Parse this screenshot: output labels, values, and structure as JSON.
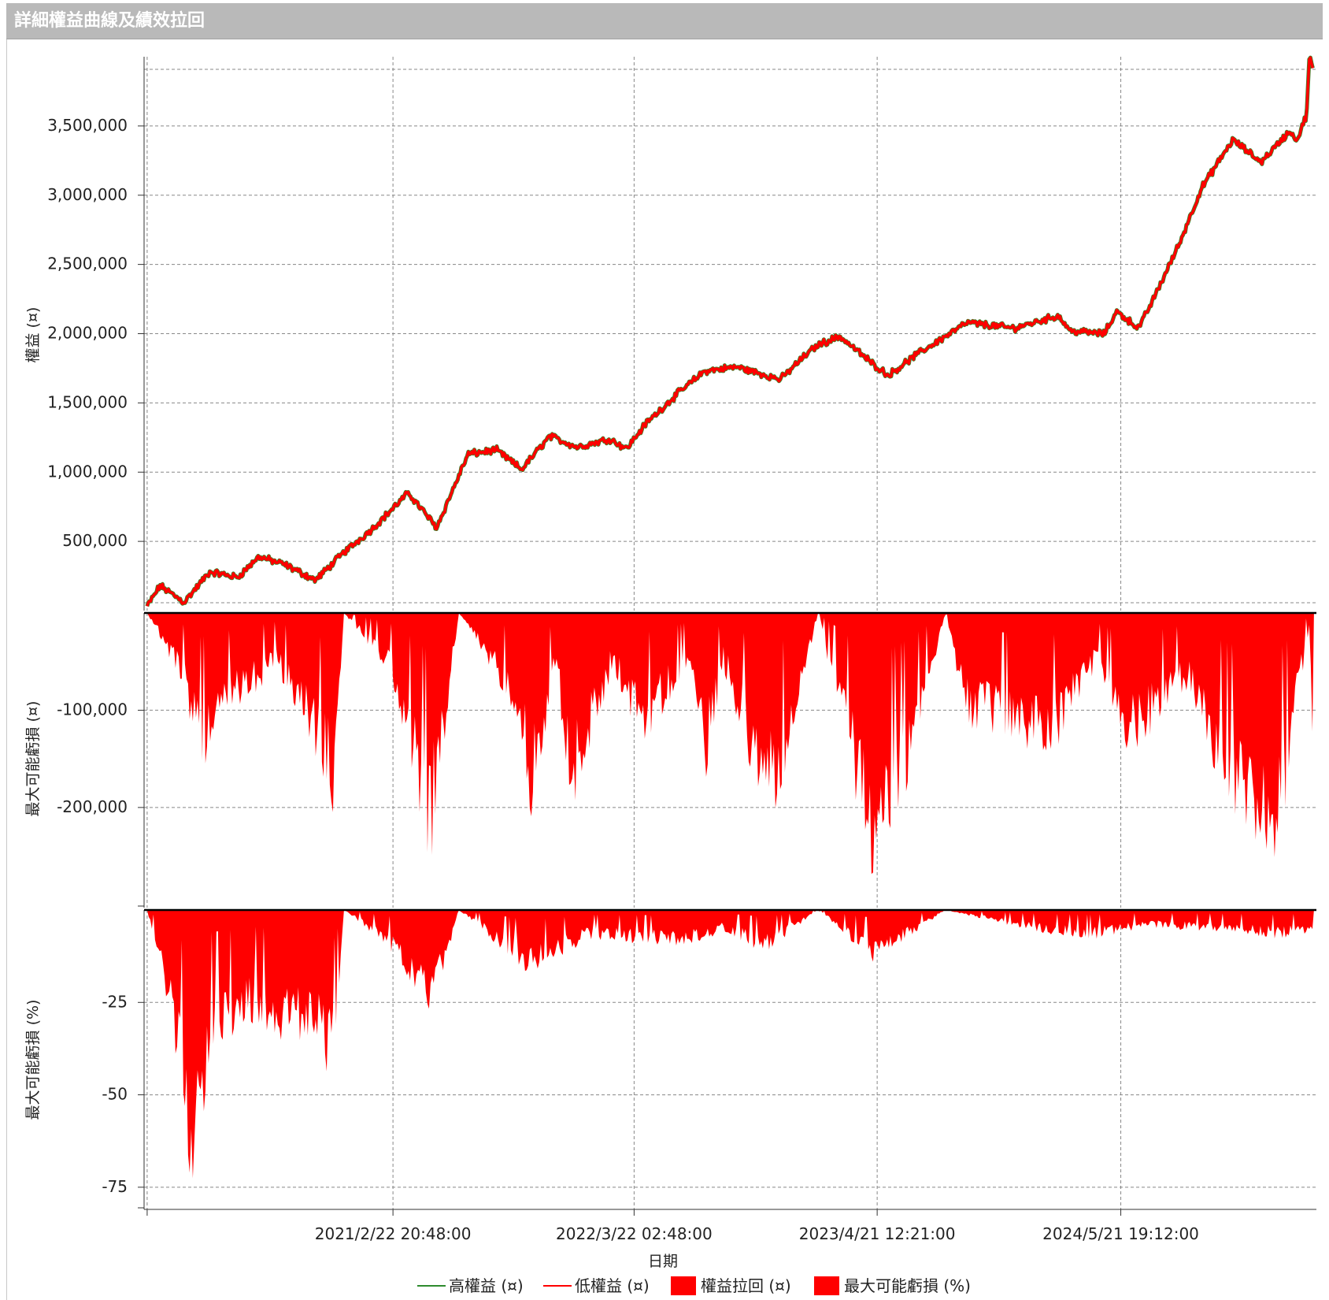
{
  "window": {
    "title": "詳細權益曲線及績效拉回"
  },
  "colors": {
    "high_equity": "#2e8b2e",
    "low_equity": "#ff0000",
    "drawdown_fill": "#ff0000",
    "grid": "#888888"
  },
  "chart_data": [
    {
      "type": "line",
      "panel": "equity",
      "ylabel": "權益 (¤)",
      "ylim": [
        0,
        4000000
      ],
      "yticks": [
        500000,
        1000000,
        1500000,
        2000000,
        2500000,
        3000000,
        3500000
      ],
      "ytick_labels": [
        "500,000",
        "1,000,000",
        "1,500,000",
        "2,000,000",
        "2,500,000",
        "3,000,000",
        "3,500,000"
      ],
      "grid": true,
      "series": [
        {
          "name": "高權益 (¤)",
          "color": "#2e8b2e"
        },
        {
          "name": "低權益 (¤)",
          "color": "#ff0000"
        }
      ],
      "x": [
        "2020-01-20",
        "2020-02-10",
        "2020-03-20",
        "2020-05-01",
        "2020-06-15",
        "2020-07-20",
        "2020-09-01",
        "2020-10-20",
        "2020-12-05",
        "2021-01-20",
        "2021-03-20",
        "2021-05-05",
        "2021-06-25",
        "2021-08-10",
        "2021-09-20",
        "2021-11-05",
        "2021-12-20",
        "2022-02-10",
        "2022-03-10",
        "2022-04-10",
        "2022-05-30",
        "2022-07-15",
        "2022-09-05",
        "2022-11-15",
        "2022-12-20",
        "2023-01-15",
        "2023-02-20",
        "2023-04-15",
        "2023-05-10",
        "2023-06-25",
        "2023-09-15",
        "2023-11-30",
        "2024-02-10",
        "2024-03-01",
        "2024-04-25",
        "2024-05-15",
        "2024-06-20",
        "2024-07-15",
        "2024-08-25",
        "2024-09-30",
        "2024-11-20",
        "2025-01-05",
        "2025-02-20",
        "2025-03-05",
        "2025-03-20",
        "2025-03-25",
        "2025-04-01"
      ],
      "values": [
        30000,
        180000,
        60000,
        280000,
        240000,
        390000,
        330000,
        220000,
        420000,
        590000,
        850000,
        600000,
        1130000,
        1160000,
        1020000,
        1260000,
        1180000,
        1240000,
        1170000,
        1350000,
        1560000,
        1730000,
        1760000,
        1670000,
        1820000,
        1920000,
        1980000,
        1780000,
        1700000,
        1850000,
        2080000,
        2040000,
        2130000,
        2020000,
        2000000,
        2160000,
        2040000,
        2260000,
        2650000,
        3050000,
        3400000,
        3240000,
        3460000,
        3400000,
        3580000,
        4020000,
        3870000
      ]
    },
    {
      "type": "area",
      "panel": "drawdown_value",
      "series_name": "權益拉回 (¤)",
      "ylabel": "最大可能虧損 (¤)",
      "ylim": [
        -303000,
        0
      ],
      "yticks": [
        -100000,
        -200000
      ],
      "ytick_labels": [
        "-100,000",
        "-200,000"
      ],
      "grid": true,
      "x": [
        "2020-01-20",
        "2020-03-20",
        "2020-04-15",
        "2020-06-10",
        "2020-08-15",
        "2020-10-15",
        "2020-11-20",
        "2020-12-05",
        "2021-02-15",
        "2021-03-15",
        "2021-04-25",
        "2021-06-10",
        "2021-09-15",
        "2021-10-05",
        "2021-11-15",
        "2021-12-10",
        "2022-02-15",
        "2022-04-05",
        "2022-06-20",
        "2022-07-15",
        "2022-08-15",
        "2022-10-20",
        "2022-11-20",
        "2023-01-15",
        "2023-04-20",
        "2023-06-10",
        "2023-08-10",
        "2023-09-15",
        "2024-02-01",
        "2024-04-10",
        "2024-06-01",
        "2024-09-05",
        "2024-11-15",
        "2025-02-01",
        "2025-03-25",
        "2025-04-01"
      ],
      "values": [
        0,
        -80000,
        -165000,
        -110000,
        -60000,
        -140000,
        -215000,
        0,
        -60000,
        -130000,
        -268000,
        0,
        -110000,
        -215000,
        -60000,
        -215000,
        -60000,
        -140000,
        -60000,
        -180000,
        -60000,
        -215000,
        -190000,
        0,
        -300000,
        -180000,
        0,
        -120000,
        -150000,
        -60000,
        -155000,
        -80000,
        -210000,
        -262000,
        -10000,
        -188000
      ]
    },
    {
      "type": "area",
      "panel": "drawdown_percent",
      "series_name": "最大可能虧損 (%)",
      "ylabel": "最大可能虧損 (%)",
      "ylim": [
        -81,
        0
      ],
      "yticks": [
        -25,
        -50,
        -75
      ],
      "ytick_labels": [
        "-25",
        "-50",
        "-75"
      ],
      "grid": true,
      "x": [
        "2020-01-20",
        "2020-02-20",
        "2020-03-10",
        "2020-03-20",
        "2020-04-05",
        "2020-05-01",
        "2020-06-10",
        "2020-07-15",
        "2020-09-01",
        "2020-10-15",
        "2020-11-20",
        "2020-12-05",
        "2021-02-15",
        "2021-04-25",
        "2021-06-10",
        "2021-10-05",
        "2022-01-10",
        "2022-03-15",
        "2022-06-15",
        "2022-08-15",
        "2022-10-20",
        "2023-01-15",
        "2023-04-20",
        "2023-06-10",
        "2023-08-10",
        "2024-02-01",
        "2024-04-10",
        "2024-07-01",
        "2024-11-15",
        "2025-02-01",
        "2025-04-01"
      ],
      "values": [
        0,
        -25,
        -45,
        -60,
        -81,
        -40,
        -35,
        -30,
        -38,
        -35,
        -50,
        0,
        -10,
        -31,
        0,
        -18,
        -8,
        -9,
        -10,
        -6,
        -12,
        0,
        -15,
        -8,
        0,
        -7,
        -8,
        -5,
        -6,
        -8,
        -6
      ]
    }
  ],
  "x_axis": {
    "label": "日期",
    "min": "2020-01-15",
    "max": "2025-04-05",
    "ticks": [
      "2020-01-20",
      "2021-02-22T20:48",
      "2022-03-22T02:48",
      "2023-04-21T12:21",
      "2024-05-21T19:12"
    ],
    "tick_labels": [
      "",
      "2021/2/22 20:48:00",
      "2022/3/22 02:48:00",
      "2023/4/21 12:21:00",
      "2024/5/21 19:12:00"
    ]
  },
  "legend": {
    "position": "bottom",
    "items": [
      {
        "label": "高權益 (¤)",
        "kind": "line",
        "color": "#2e8b2e"
      },
      {
        "label": "低權益 (¤)",
        "kind": "line",
        "color": "#ff0000"
      },
      {
        "label": "權益拉回 (¤)",
        "kind": "box",
        "color": "#ff0000"
      },
      {
        "label": "最大可能虧損 (%)",
        "kind": "box",
        "color": "#ff0000"
      }
    ]
  }
}
